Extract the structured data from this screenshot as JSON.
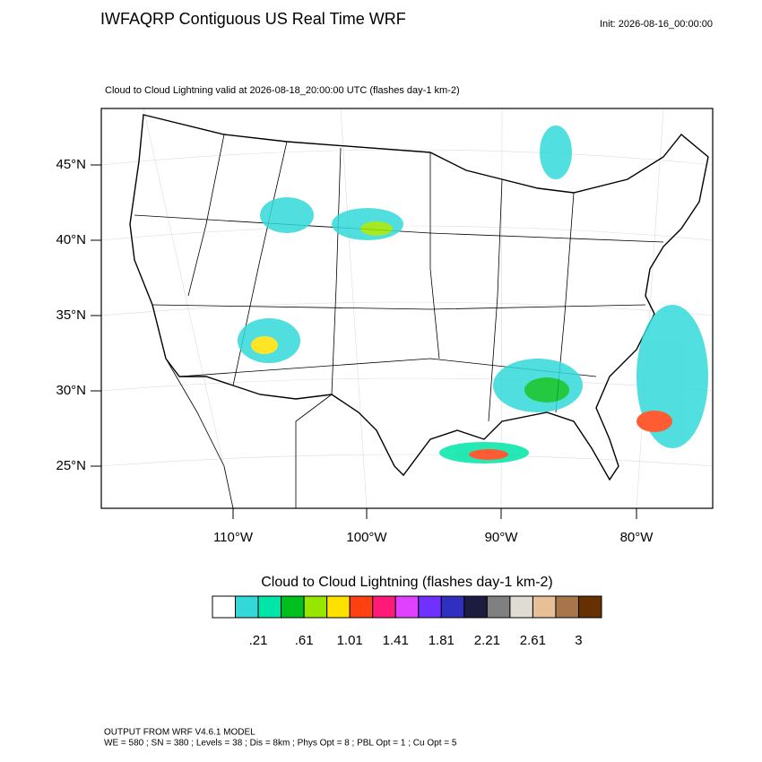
{
  "header": {
    "title": "IWFAQRP Contiguous US Real Time WRF",
    "init": "Init: 2026-08-16_00:00:00"
  },
  "map": {
    "subtitle": "Cloud to Cloud Lightning valid at 2026-08-18_20:00:00 UTC   (flashes day-1 km-2)",
    "lat_labels": [
      "45°N",
      "40°N",
      "35°N",
      "30°N",
      "25°N"
    ],
    "lon_labels": [
      "110°W",
      "100°W",
      "90°W",
      "80°W"
    ]
  },
  "colorbar": {
    "title": "Cloud to Cloud Lightning  (flashes day-1 km-2)",
    "colors": [
      "#ffffff",
      "#33d9d9",
      "#00e6a8",
      "#00c020",
      "#96e600",
      "#ffe100",
      "#ff4010",
      "#ff1a78",
      "#e040ff",
      "#7030ff",
      "#3030c0",
      "#1c1c40",
      "#808080",
      "#e0dcd4",
      "#e8c098",
      "#a8744a",
      "#663000"
    ],
    "labels": [
      ".21",
      ".61",
      "1.01",
      "1.41",
      "1.81",
      "2.21",
      "2.61",
      "3"
    ]
  },
  "footer": {
    "line1": "OUTPUT FROM WRF V4.6.1 MODEL",
    "line2": "WE = 580 ; SN = 380 ; Levels = 38 ; Dis = 8km ; Phys Opt = 8 ; PBL Opt = 1 ; Cu Opt = 5"
  }
}
